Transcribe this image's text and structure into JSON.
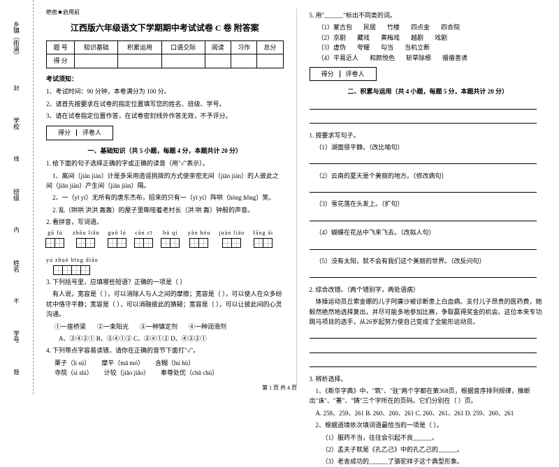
{
  "binding": {
    "labels": [
      "乡镇（街道）",
      "学校",
      "班级",
      "姓名",
      "学号"
    ],
    "marks": [
      "封",
      "线",
      "内",
      "不",
      "题"
    ]
  },
  "header": {
    "secret": "绝密★启用前",
    "title": "江西版六年级语文下学期期中考试试卷 C 卷 附答案"
  },
  "scoreTable": {
    "headers": [
      "题  号",
      "知识基础",
      "积累运用",
      "口语交际",
      "阅读",
      "习作",
      "总分"
    ],
    "row2": "得  分"
  },
  "notice": {
    "title": "考试须知：",
    "items": [
      "1、考试时间：90 分钟，本卷满分为 100 分。",
      "2、请首先按要求在试卷的指定位置填写您的姓名、班级、学号。",
      "3、请在试卷指定位置作答，在试卷密封线外作答无效，不予评分。"
    ]
  },
  "scorebox": {
    "a": "得分",
    "b": "评卷人"
  },
  "section1": {
    "title": "一、基础知识（共 5 小题，每题 4 分，本题共计 20 分）"
  },
  "q1": {
    "stem": "1. 给下面的句子选择正确的字或正确的读音（用\"√\"表示）。",
    "lines": [
      "1、离间（jiān  jiàn）计是多采用造谣挑拨的方式使亲密无间（jiān  jiàn）的人彼此之间（jiān  jiàn）产生间（jiān  jiàn）隔。",
      "2、一（yī  yí）无所有的唐东杰布，招来的只有一（yī  yì）阵哄（hōng  hǒng）笑。"
    ]
  },
  "q2": {
    "stem": "2. 乱（哄哄  洪洪  轰轰）的屋子里嘶哑着老村长（洪  哄  轰）钟般的声音。",
    "sub": "2. 看拼音，写词语。",
    "pinyin": [
      {
        "p": "gū  fù",
        "n": 2
      },
      {
        "p": "zhōu liǎn",
        "n": 2
      },
      {
        "p": "guō  lú",
        "n": 2
      },
      {
        "p": "cān  cī",
        "n": 2
      },
      {
        "p": "bù  qí",
        "n": 2
      },
      {
        "p": "yān  hóu",
        "n": 2
      },
      {
        "p": "juàn liáo",
        "n": 2
      },
      {
        "p": "fāng āi",
        "n": 2
      },
      {
        "p": "yú zhuó bīng diāo",
        "n": 4
      }
    ]
  },
  "q3": {
    "stem": "3. 下列括号里，应填哪些短语？正确的一项是（    ）",
    "body": "有人说，宽容是（    ），可以消除人与人之间的摩擦；宽容是（    ），可以使人在众多纷扰中恪守平静；宽容是（    ），可以消融彼此的猜疑；宽容是（    ），可以让彼此间的心灵沟通。",
    "opts": [
      "①一座桥梁",
      "②一束阳光",
      "③一种镇定剂",
      "④一种润滑剂"
    ],
    "choices": "A、③④②①    B、③④①②    C、③④①②    D、④③②①"
  },
  "q4": {
    "stem": "4. 下列带点字容易读错，请你在正确的音节下面打\"√\"。",
    "items": [
      "栗子（lì  sù）",
      "摩平（mā  mó）",
      "含糊（hú  hù）",
      "寺院（sì  shì）",
      "计较（jiǎo  jiǎo）",
      "奉尊处优（chǔ  chù）"
    ]
  },
  "q5": {
    "stem": "5. 用\"______\"标出不同类的词。",
    "rows": [
      [
        "（1）蒙古包",
        "民居",
        "竹楼",
        "四点金",
        "四合院"
      ],
      [
        "（2）京剧",
        "藏戏",
        "黄梅戏",
        "越剧",
        "戏剧"
      ],
      [
        "（3）虚伪",
        "夸耀",
        "勾当",
        "当机立断",
        ""
      ],
      [
        "（4）平易近人",
        "和颜悦色",
        "斩草除根",
        "循循善诱",
        ""
      ]
    ]
  },
  "section2": {
    "title": "二、积累与运用（共 4 小题，每题 5 分，本题共计 20 分）"
  },
  "q2_1": {
    "stem": "1. 按要求写句子。",
    "items": [
      "（1）湖面很平静。（改比喻句）",
      "（2）云南的夏天是个美丽的地方。（修改病句）",
      "（3）雪花落在头发上。（扩句）",
      "（4）蝴蝶在花丛中飞来飞去。（改拟人句）",
      "（5）没有太阳，就不会有我们这个美丽的世界。（改反问句）"
    ]
  },
  "q2_2": {
    "stem": "2. 综合改错。（两个错别字，两处语病）",
    "body": "体操运动员丘索金娜的儿子阿廉沙被诊断患上白血病。支付儿子昂贵的医药费，她毅然绝然地选择复出，并尽可能多地参加比赛，争取赢得奖金的机会。这位本来专功跳马项目的选手，从26岁起努力使自己变成了全能形运动员。"
  },
  "q2_3": {
    "stem": "3. 辨析选择。",
    "l1": "1、《新华字典》中，\"筑\"、\"驻\"两个字都在第368页，根据音序排列规律，推断出\"诛\"、\"著\"、\"铸\"三个字所在的页码。它们分别在（    ）页。",
    "opts": "A. 258、259、261  B. 260、260、261  C. 260、261、261  D. 259、260、261",
    "l2": "2、根据语境依次填词语最恰当的一项是（    ）。",
    "items": [
      "（1）服药不当，往往会引起不良______。",
      "（2）孟夫子就是《孔乙己》中的孔乙己的______。",
      "（3）老舍成功的______了骆驼祥子这个典型形象。"
    ]
  },
  "footer": "第 1 页  共 4 页"
}
